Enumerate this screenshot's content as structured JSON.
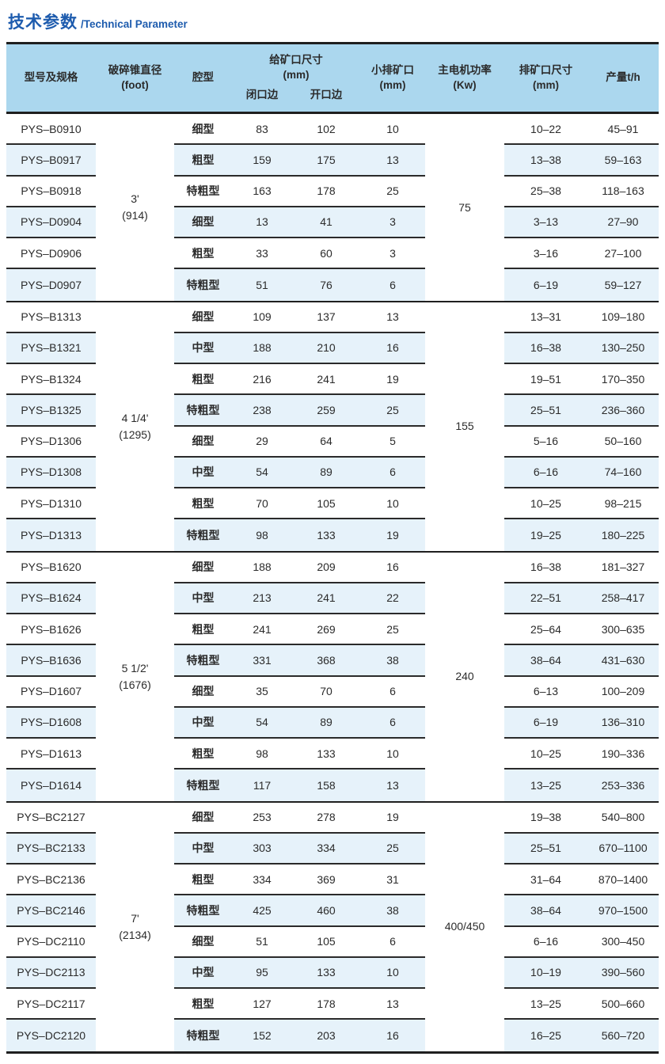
{
  "title": {
    "zh": "技术参数",
    "en": "/Technical Parameter"
  },
  "colors": {
    "title_blue": "#1e5cae",
    "header_bg": "#abd7ee",
    "stripe_bg": "#e6f2fa",
    "border": "#1f1f1f"
  },
  "table": {
    "columns": {
      "model": "型号及规格",
      "cone_diameter": [
        "破碎锥直径",
        "(foot)"
      ],
      "cavity": "腔型",
      "feed_opening": [
        "给矿口尺寸",
        "(mm)"
      ],
      "closed_side": "闭口边",
      "open_side": "开口边",
      "min_discharge": [
        "小排矿口",
        "(mm)"
      ],
      "motor_power": [
        "主电机功率",
        "(Kw)"
      ],
      "discharge_size": [
        "排矿口尺寸",
        "(mm)"
      ],
      "capacity": "产量t/h"
    },
    "groups": [
      {
        "cone_diameter": "3'",
        "cone_diameter_mm": "(914)",
        "motor_power": "75",
        "rows": [
          {
            "model": "PYS–B0910",
            "cavity": "细型",
            "closed_side": "83",
            "open_side": "102",
            "min_discharge": "10",
            "discharge_size": "10–22",
            "capacity": "45–91"
          },
          {
            "model": "PYS–B0917",
            "cavity": "粗型",
            "closed_side": "159",
            "open_side": "175",
            "min_discharge": "13",
            "discharge_size": "13–38",
            "capacity": "59–163"
          },
          {
            "model": "PYS–B0918",
            "cavity": "特粗型",
            "closed_side": "163",
            "open_side": "178",
            "min_discharge": "25",
            "discharge_size": "25–38",
            "capacity": "118–163"
          },
          {
            "model": "PYS–D0904",
            "cavity": "细型",
            "closed_side": "13",
            "open_side": "41",
            "min_discharge": "3",
            "discharge_size": "3–13",
            "capacity": "27–90"
          },
          {
            "model": "PYS–D0906",
            "cavity": "粗型",
            "closed_side": "33",
            "open_side": "60",
            "min_discharge": "3",
            "discharge_size": "3–16",
            "capacity": "27–100"
          },
          {
            "model": "PYS–D0907",
            "cavity": "特粗型",
            "closed_side": "51",
            "open_side": "76",
            "min_discharge": "6",
            "discharge_size": "6–19",
            "capacity": "59–127"
          }
        ]
      },
      {
        "cone_diameter": "4 1/4'",
        "cone_diameter_mm": "(1295)",
        "motor_power": "155",
        "rows": [
          {
            "model": "PYS–B1313",
            "cavity": "细型",
            "closed_side": "109",
            "open_side": "137",
            "min_discharge": "13",
            "discharge_size": "13–31",
            "capacity": "109–180"
          },
          {
            "model": "PYS–B1321",
            "cavity": "中型",
            "closed_side": "188",
            "open_side": "210",
            "min_discharge": "16",
            "discharge_size": "16–38",
            "capacity": "130–250"
          },
          {
            "model": "PYS–B1324",
            "cavity": "粗型",
            "closed_side": "216",
            "open_side": "241",
            "min_discharge": "19",
            "discharge_size": "19–51",
            "capacity": "170–350"
          },
          {
            "model": "PYS–B1325",
            "cavity": "特粗型",
            "closed_side": "238",
            "open_side": "259",
            "min_discharge": "25",
            "discharge_size": "25–51",
            "capacity": "236–360"
          },
          {
            "model": "PYS–D1306",
            "cavity": "细型",
            "closed_side": "29",
            "open_side": "64",
            "min_discharge": "5",
            "discharge_size": "5–16",
            "capacity": "50–160"
          },
          {
            "model": "PYS–D1308",
            "cavity": "中型",
            "closed_side": "54",
            "open_side": "89",
            "min_discharge": "6",
            "discharge_size": "6–16",
            "capacity": "74–160"
          },
          {
            "model": "PYS–D1310",
            "cavity": "粗型",
            "closed_side": "70",
            "open_side": "105",
            "min_discharge": "10",
            "discharge_size": "10–25",
            "capacity": "98–215"
          },
          {
            "model": "PYS–D1313",
            "cavity": "特粗型",
            "closed_side": "98",
            "open_side": "133",
            "min_discharge": "19",
            "discharge_size": "19–25",
            "capacity": "180–225"
          }
        ]
      },
      {
        "cone_diameter": "5 1/2'",
        "cone_diameter_mm": "(1676)",
        "motor_power": "240",
        "rows": [
          {
            "model": "PYS–B1620",
            "cavity": "细型",
            "closed_side": "188",
            "open_side": "209",
            "min_discharge": "16",
            "discharge_size": "16–38",
            "capacity": "181–327"
          },
          {
            "model": "PYS–B1624",
            "cavity": "中型",
            "closed_side": "213",
            "open_side": "241",
            "min_discharge": "22",
            "discharge_size": "22–51",
            "capacity": "258–417"
          },
          {
            "model": "PYS–B1626",
            "cavity": "粗型",
            "closed_side": "241",
            "open_side": "269",
            "min_discharge": "25",
            "discharge_size": "25–64",
            "capacity": "300–635"
          },
          {
            "model": "PYS–B1636",
            "cavity": "特粗型",
            "closed_side": "331",
            "open_side": "368",
            "min_discharge": "38",
            "discharge_size": "38–64",
            "capacity": "431–630"
          },
          {
            "model": "PYS–D1607",
            "cavity": "细型",
            "closed_side": "35",
            "open_side": "70",
            "min_discharge": "6",
            "discharge_size": "6–13",
            "capacity": "100–209"
          },
          {
            "model": "PYS–D1608",
            "cavity": "中型",
            "closed_side": "54",
            "open_side": "89",
            "min_discharge": "6",
            "discharge_size": "6–19",
            "capacity": "136–310"
          },
          {
            "model": "PYS–D1613",
            "cavity": "粗型",
            "closed_side": "98",
            "open_side": "133",
            "min_discharge": "10",
            "discharge_size": "10–25",
            "capacity": "190–336"
          },
          {
            "model": "PYS–D1614",
            "cavity": "特粗型",
            "closed_side": "117",
            "open_side": "158",
            "min_discharge": "13",
            "discharge_size": "13–25",
            "capacity": "253–336"
          }
        ]
      },
      {
        "cone_diameter": "7'",
        "cone_diameter_mm": "(2134)",
        "motor_power": "400/450",
        "rows": [
          {
            "model": "PYS–BC2127",
            "cavity": "细型",
            "closed_side": "253",
            "open_side": "278",
            "min_discharge": "19",
            "discharge_size": "19–38",
            "capacity": "540–800"
          },
          {
            "model": "PYS–BC2133",
            "cavity": "中型",
            "closed_side": "303",
            "open_side": "334",
            "min_discharge": "25",
            "discharge_size": "25–51",
            "capacity": "670–1100"
          },
          {
            "model": "PYS–BC2136",
            "cavity": "粗型",
            "closed_side": "334",
            "open_side": "369",
            "min_discharge": "31",
            "discharge_size": "31–64",
            "capacity": "870–1400"
          },
          {
            "model": "PYS–BC2146",
            "cavity": "特粗型",
            "closed_side": "425",
            "open_side": "460",
            "min_discharge": "38",
            "discharge_size": "38–64",
            "capacity": "970–1500"
          },
          {
            "model": "PYS–DC2110",
            "cavity": "细型",
            "closed_side": "51",
            "open_side": "105",
            "min_discharge": "6",
            "discharge_size": "6–16",
            "capacity": "300–450"
          },
          {
            "model": "PYS–DC2113",
            "cavity": "中型",
            "closed_side": "95",
            "open_side": "133",
            "min_discharge": "10",
            "discharge_size": "10–19",
            "capacity": "390–560"
          },
          {
            "model": "PYS–DC2117",
            "cavity": "粗型",
            "closed_side": "127",
            "open_side": "178",
            "min_discharge": "13",
            "discharge_size": "13–25",
            "capacity": "500–660"
          },
          {
            "model": "PYS–DC2120",
            "cavity": "特粗型",
            "closed_side": "152",
            "open_side": "203",
            "min_discharge": "16",
            "discharge_size": "16–25",
            "capacity": "560–720"
          }
        ]
      }
    ]
  }
}
